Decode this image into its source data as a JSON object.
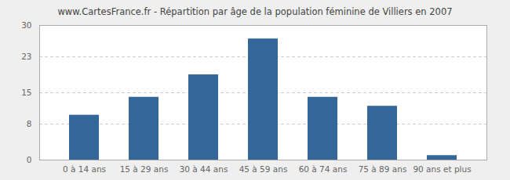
{
  "chart_data": {
    "type": "bar",
    "title": "www.CartesFrance.fr - Répartition par âge de la population féminine de Villiers en 2007",
    "categories": [
      "0 à 14 ans",
      "15 à 29 ans",
      "30 à 44 ans",
      "45 à 59 ans",
      "60 à 74 ans",
      "75 à 89 ans",
      "90 ans et plus"
    ],
    "values": [
      10,
      14,
      19,
      27,
      14,
      12,
      1
    ],
    "color": "#336699",
    "ylim": [
      0,
      30
    ],
    "yticks": [
      0,
      8,
      15,
      23,
      30
    ],
    "grid": true
  }
}
